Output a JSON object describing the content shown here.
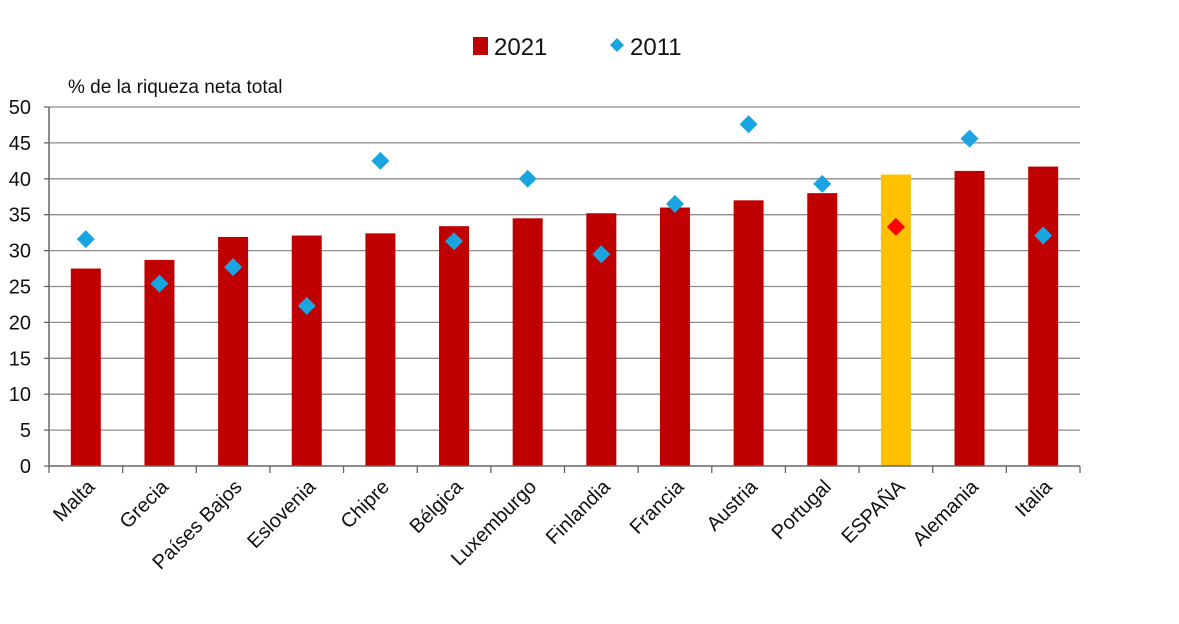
{
  "chart_data": {
    "type": "bar",
    "categories": [
      "Malta",
      "Grecia",
      "Países Bajos",
      "Eslovenia",
      "Chipre",
      "Bélgica",
      "Luxemburgo",
      "Finlandia",
      "Francia",
      "Austria",
      "Portugal",
      "ESPAÑA",
      "Alemania",
      "Italia"
    ],
    "series": [
      {
        "name": "2021",
        "mark": "bar",
        "color": "#c00000",
        "highlight": {
          "category": "ESPAÑA",
          "color": "#ffc000"
        },
        "values": [
          27.5,
          28.7,
          31.9,
          32.1,
          32.4,
          33.4,
          34.5,
          35.2,
          36.0,
          37.0,
          38.0,
          40.6,
          41.1,
          41.7
        ]
      },
      {
        "name": "2011",
        "mark": "diamond",
        "color": "#1ba5e0",
        "highlight": {
          "category": "ESPAÑA",
          "color": "#ff0000"
        },
        "values": [
          31.6,
          25.4,
          27.7,
          22.3,
          42.5,
          31.3,
          40.0,
          29.5,
          36.5,
          47.6,
          39.3,
          33.3,
          45.6,
          32.1
        ]
      }
    ],
    "title": "",
    "xlabel": "",
    "ylabel": "% de la riqueza neta total",
    "ylim": [
      0,
      50
    ],
    "yticks": [
      0,
      5,
      10,
      15,
      20,
      25,
      30,
      35,
      40,
      45,
      50
    ],
    "grid": true,
    "legend_position": "top-center"
  }
}
